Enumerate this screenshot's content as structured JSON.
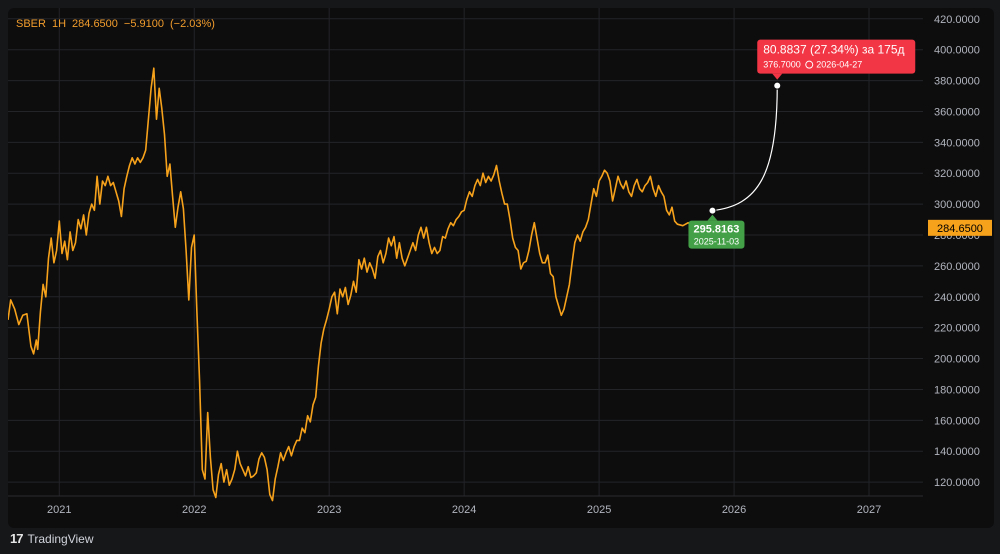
{
  "header": {
    "symbol": "SBER",
    "interval": "1H",
    "price": "284.6500",
    "change": "−5.9100",
    "change_pct": "(−2.03%)"
  },
  "brand": {
    "name": "TradingView",
    "logo": "tradingview-logo-icon"
  },
  "colors": {
    "line": "#f7a21b",
    "grid": "#232428",
    "axis_text": "#b2b5be",
    "price_tag": "#f7a21b",
    "start_tag": "#43a047",
    "end_tag": "#f23645",
    "projection": "#ffffff"
  },
  "chart_data": {
    "type": "line",
    "series": [
      {
        "values": [
          [
            2020.62,
            225
          ],
          [
            2020.64,
            238
          ],
          [
            2020.67,
            232
          ],
          [
            2020.7,
            222
          ],
          [
            2020.73,
            228
          ],
          [
            2020.76,
            229
          ],
          [
            2020.79,
            208
          ],
          [
            2020.81,
            203
          ],
          [
            2020.83,
            212
          ],
          [
            2020.84,
            206
          ],
          [
            2020.86,
            230
          ],
          [
            2020.88,
            248
          ],
          [
            2020.9,
            240
          ],
          [
            2020.92,
            265
          ],
          [
            2020.94,
            278
          ],
          [
            2020.96,
            262
          ],
          [
            2020.98,
            270
          ],
          [
            2021.0,
            289
          ],
          [
            2021.02,
            268
          ],
          [
            2021.04,
            276
          ],
          [
            2021.06,
            264
          ],
          [
            2021.08,
            282
          ],
          [
            2021.1,
            270
          ],
          [
            2021.12,
            275
          ],
          [
            2021.14,
            290
          ],
          [
            2021.16,
            284
          ],
          [
            2021.18,
            293
          ],
          [
            2021.2,
            280
          ],
          [
            2021.22,
            294
          ],
          [
            2021.24,
            300
          ],
          [
            2021.26,
            296
          ],
          [
            2021.28,
            318
          ],
          [
            2021.3,
            300
          ],
          [
            2021.32,
            315
          ],
          [
            2021.34,
            312
          ],
          [
            2021.36,
            318
          ],
          [
            2021.38,
            312
          ],
          [
            2021.4,
            314
          ],
          [
            2021.42,
            308
          ],
          [
            2021.44,
            302
          ],
          [
            2021.46,
            292
          ],
          [
            2021.48,
            310
          ],
          [
            2021.5,
            318
          ],
          [
            2021.52,
            325
          ],
          [
            2021.54,
            330
          ],
          [
            2021.56,
            326
          ],
          [
            2021.58,
            330
          ],
          [
            2021.6,
            327
          ],
          [
            2021.62,
            330
          ],
          [
            2021.64,
            335
          ],
          [
            2021.66,
            355
          ],
          [
            2021.68,
            375
          ],
          [
            2021.7,
            388
          ],
          [
            2021.72,
            355
          ],
          [
            2021.74,
            375
          ],
          [
            2021.76,
            362
          ],
          [
            2021.78,
            345
          ],
          [
            2021.8,
            318
          ],
          [
            2021.82,
            326
          ],
          [
            2021.84,
            305
          ],
          [
            2021.86,
            285
          ],
          [
            2021.88,
            298
          ],
          [
            2021.9,
            308
          ],
          [
            2021.92,
            297
          ],
          [
            2021.94,
            270
          ],
          [
            2021.96,
            238
          ],
          [
            2021.98,
            272
          ],
          [
            2022.0,
            280
          ],
          [
            2022.02,
            230
          ],
          [
            2022.04,
            185
          ],
          [
            2022.06,
            128
          ],
          [
            2022.08,
            122
          ],
          [
            2022.1,
            165
          ],
          [
            2022.12,
            136
          ],
          [
            2022.14,
            115
          ],
          [
            2022.16,
            110
          ],
          [
            2022.18,
            125
          ],
          [
            2022.2,
            132
          ],
          [
            2022.22,
            120
          ],
          [
            2022.24,
            128
          ],
          [
            2022.26,
            118
          ],
          [
            2022.28,
            122
          ],
          [
            2022.3,
            128
          ],
          [
            2022.32,
            140
          ],
          [
            2022.34,
            132
          ],
          [
            2022.36,
            128
          ],
          [
            2022.38,
            124
          ],
          [
            2022.4,
            130
          ],
          [
            2022.42,
            123
          ],
          [
            2022.44,
            124
          ],
          [
            2022.46,
            126
          ],
          [
            2022.48,
            135
          ],
          [
            2022.5,
            139
          ],
          [
            2022.52,
            136
          ],
          [
            2022.54,
            128
          ],
          [
            2022.56,
            112
          ],
          [
            2022.58,
            108
          ],
          [
            2022.6,
            122
          ],
          [
            2022.62,
            130
          ],
          [
            2022.64,
            139
          ],
          [
            2022.66,
            134
          ],
          [
            2022.68,
            139
          ],
          [
            2022.7,
            143
          ],
          [
            2022.72,
            137
          ],
          [
            2022.74,
            143
          ],
          [
            2022.76,
            147
          ],
          [
            2022.78,
            147
          ],
          [
            2022.8,
            155
          ],
          [
            2022.82,
            152
          ],
          [
            2022.84,
            163
          ],
          [
            2022.86,
            159
          ],
          [
            2022.88,
            170
          ],
          [
            2022.9,
            175
          ],
          [
            2022.92,
            195
          ],
          [
            2022.94,
            210
          ],
          [
            2022.96,
            219
          ],
          [
            2022.98,
            225
          ],
          [
            2023.0,
            232
          ],
          [
            2023.02,
            240
          ],
          [
            2023.04,
            243
          ],
          [
            2023.06,
            229
          ],
          [
            2023.08,
            245
          ],
          [
            2023.1,
            240
          ],
          [
            2023.12,
            246
          ],
          [
            2023.14,
            235
          ],
          [
            2023.16,
            241
          ],
          [
            2023.18,
            250
          ],
          [
            2023.2,
            243
          ],
          [
            2023.22,
            264
          ],
          [
            2023.24,
            258
          ],
          [
            2023.26,
            265
          ],
          [
            2023.28,
            256
          ],
          [
            2023.3,
            262
          ],
          [
            2023.32,
            258
          ],
          [
            2023.34,
            252
          ],
          [
            2023.36,
            266
          ],
          [
            2023.38,
            270
          ],
          [
            2023.4,
            262
          ],
          [
            2023.42,
            268
          ],
          [
            2023.44,
            278
          ],
          [
            2023.46,
            273
          ],
          [
            2023.48,
            279
          ],
          [
            2023.5,
            265
          ],
          [
            2023.52,
            275
          ],
          [
            2023.54,
            265
          ],
          [
            2023.56,
            260
          ],
          [
            2023.58,
            265
          ],
          [
            2023.6,
            270
          ],
          [
            2023.62,
            275
          ],
          [
            2023.64,
            270
          ],
          [
            2023.66,
            280
          ],
          [
            2023.68,
            285
          ],
          [
            2023.7,
            278
          ],
          [
            2023.72,
            285
          ],
          [
            2023.74,
            275
          ],
          [
            2023.76,
            268
          ],
          [
            2023.78,
            272
          ],
          [
            2023.8,
            268
          ],
          [
            2023.82,
            270
          ],
          [
            2023.84,
            279
          ],
          [
            2023.86,
            278
          ],
          [
            2023.88,
            284
          ],
          [
            2023.9,
            288
          ],
          [
            2023.92,
            286
          ],
          [
            2023.94,
            290
          ],
          [
            2023.96,
            292
          ],
          [
            2023.98,
            295
          ],
          [
            2024.0,
            296
          ],
          [
            2024.02,
            303
          ],
          [
            2024.04,
            308
          ],
          [
            2024.06,
            305
          ],
          [
            2024.08,
            312
          ],
          [
            2024.1,
            316
          ],
          [
            2024.12,
            312
          ],
          [
            2024.14,
            320
          ],
          [
            2024.16,
            314
          ],
          [
            2024.18,
            318
          ],
          [
            2024.2,
            315
          ],
          [
            2024.22,
            319
          ],
          [
            2024.24,
            325
          ],
          [
            2024.26,
            315
          ],
          [
            2024.28,
            307
          ],
          [
            2024.3,
            300
          ],
          [
            2024.32,
            300
          ],
          [
            2024.34,
            290
          ],
          [
            2024.36,
            278
          ],
          [
            2024.38,
            272
          ],
          [
            2024.4,
            270
          ],
          [
            2024.42,
            258
          ],
          [
            2024.44,
            262
          ],
          [
            2024.46,
            263
          ],
          [
            2024.48,
            270
          ],
          [
            2024.5,
            280
          ],
          [
            2024.52,
            288
          ],
          [
            2024.54,
            278
          ],
          [
            2024.56,
            268
          ],
          [
            2024.58,
            262
          ],
          [
            2024.6,
            262
          ],
          [
            2024.62,
            267
          ],
          [
            2024.64,
            255
          ],
          [
            2024.66,
            253
          ],
          [
            2024.68,
            240
          ],
          [
            2024.7,
            234
          ],
          [
            2024.72,
            228
          ],
          [
            2024.74,
            232
          ],
          [
            2024.76,
            240
          ],
          [
            2024.78,
            248
          ],
          [
            2024.8,
            262
          ],
          [
            2024.82,
            275
          ],
          [
            2024.84,
            280
          ],
          [
            2024.86,
            276
          ],
          [
            2024.88,
            282
          ],
          [
            2024.9,
            285
          ],
          [
            2024.92,
            290
          ],
          [
            2024.94,
            300
          ],
          [
            2024.96,
            310
          ],
          [
            2024.98,
            305
          ],
          [
            2025.0,
            315
          ],
          [
            2025.02,
            318
          ],
          [
            2025.04,
            322
          ],
          [
            2025.06,
            320
          ],
          [
            2025.08,
            315
          ],
          [
            2025.1,
            302
          ],
          [
            2025.12,
            310
          ],
          [
            2025.14,
            318
          ],
          [
            2025.16,
            313
          ],
          [
            2025.18,
            310
          ],
          [
            2025.2,
            315
          ],
          [
            2025.22,
            308
          ],
          [
            2025.24,
            305
          ],
          [
            2025.26,
            312
          ],
          [
            2025.28,
            316
          ],
          [
            2025.3,
            310
          ],
          [
            2025.32,
            308
          ],
          [
            2025.34,
            312
          ],
          [
            2025.36,
            314
          ],
          [
            2025.38,
            318
          ],
          [
            2025.4,
            310
          ],
          [
            2025.42,
            305
          ],
          [
            2025.44,
            312
          ],
          [
            2025.46,
            308
          ],
          [
            2025.48,
            305
          ],
          [
            2025.5,
            296
          ],
          [
            2025.52,
            293
          ],
          [
            2025.54,
            298
          ],
          [
            2025.56,
            289
          ],
          [
            2025.58,
            287
          ],
          [
            2025.62,
            286
          ],
          [
            2025.66,
            288
          ],
          [
            2025.7,
            284.65
          ]
        ]
      }
    ],
    "xlim": [
      2020.62,
      2027.4
    ],
    "ylim": [
      111,
      427
    ],
    "y_ticks": [
      "420.0000",
      "400.0000",
      "380.0000",
      "360.0000",
      "340.0000",
      "320.0000",
      "300.0000",
      "280.0000",
      "260.0000",
      "240.0000",
      "220.0000",
      "200.0000",
      "180.0000",
      "160.0000",
      "140.0000",
      "120.0000"
    ],
    "x_ticks": [
      "2021",
      "2022",
      "2023",
      "2024",
      "2025",
      "2026",
      "2027"
    ],
    "last_price_label": "284.6500",
    "projection": {
      "start": {
        "x": 2025.84,
        "y": 295.8163,
        "label_value": "295.8163",
        "label_date": "2025-11-03"
      },
      "end": {
        "x": 2026.32,
        "y": 376.7,
        "label_value": "376.7000",
        "label_date": "2026-04-27"
      },
      "change_text": "80.8837 (27.34%) за 175д",
      "clock_icon": "clock-icon"
    },
    "grid": true
  }
}
